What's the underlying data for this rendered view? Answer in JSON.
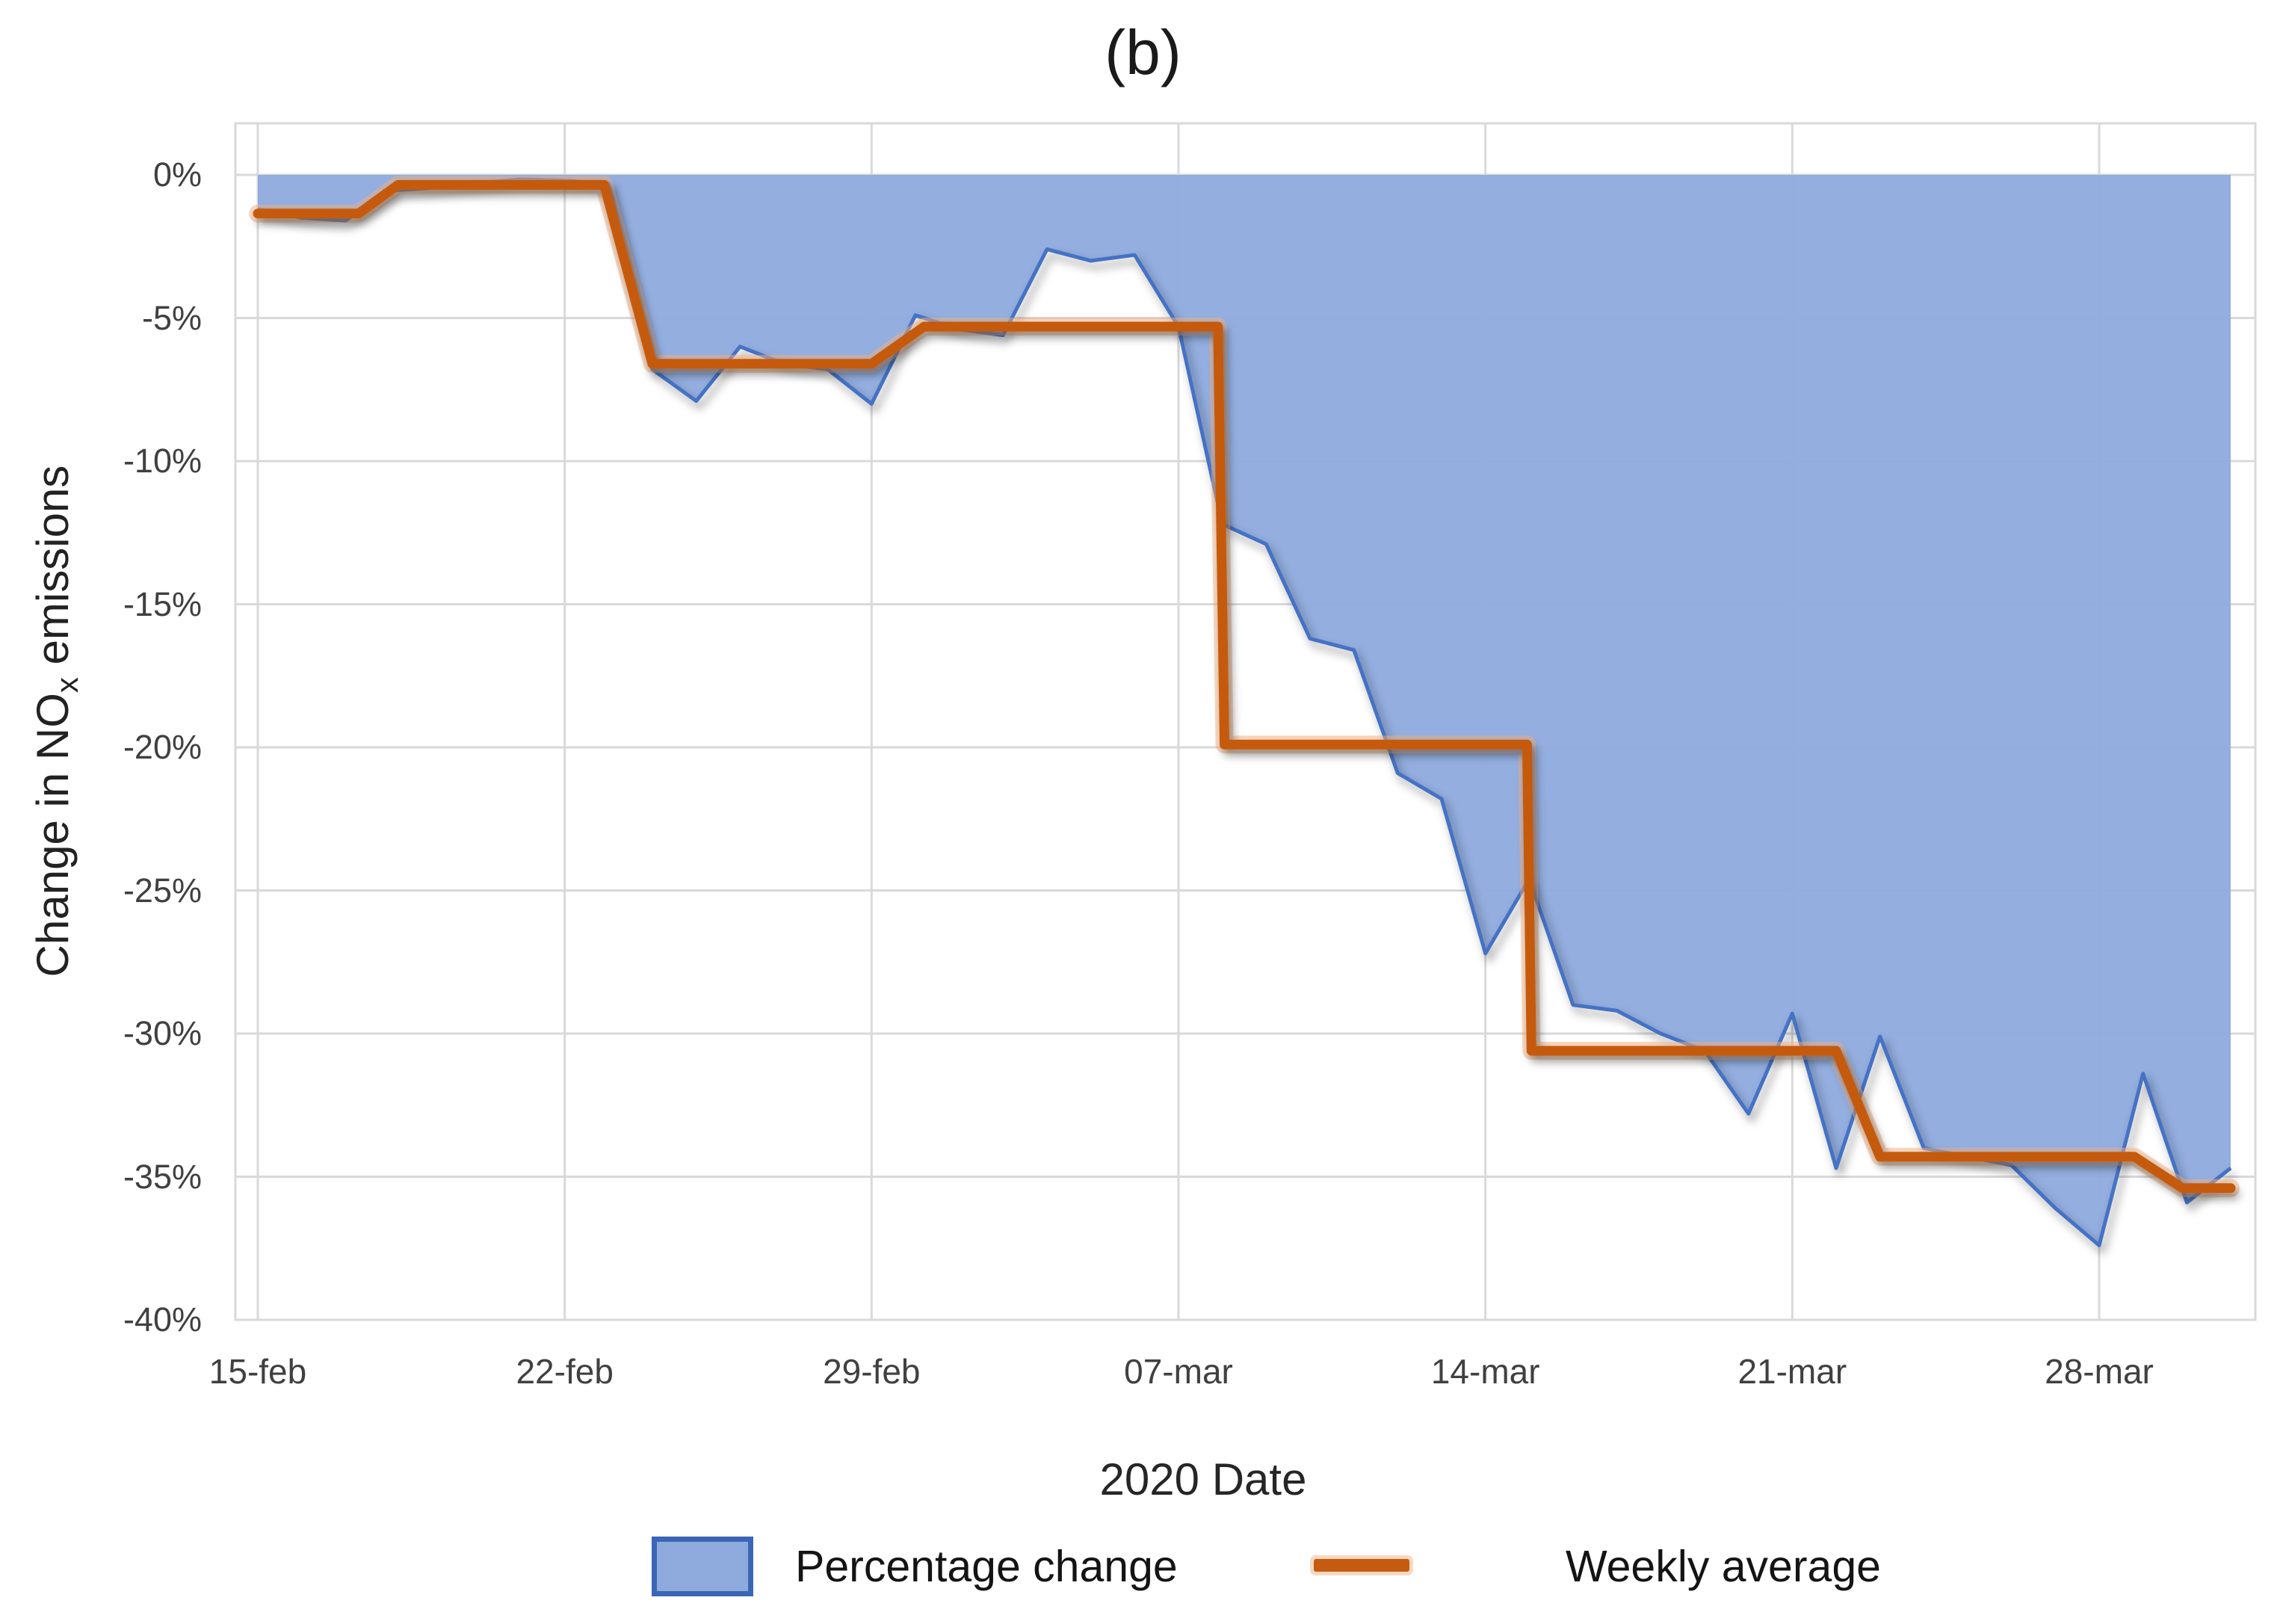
{
  "title": "(b)",
  "y_axis": {
    "title_prefix": "Change in NO",
    "title_sub": "x",
    "title_suffix": " emissions",
    "tick_labels": [
      "0%",
      "-5%",
      "-10%",
      "-15%",
      "-20%",
      "-25%",
      "-30%",
      "-35%",
      "-40%"
    ]
  },
  "x_axis": {
    "title": "2020 Date",
    "tick_labels": [
      "15-feb",
      "22-feb",
      "29-feb",
      "07-mar",
      "14-mar",
      "21-mar",
      "28-mar"
    ]
  },
  "legend": {
    "items": [
      {
        "label": "Percentage change",
        "swatch": "area"
      },
      {
        "label": "Weekly average",
        "swatch": "line"
      }
    ]
  },
  "colors": {
    "area_fill": "#8FABDE",
    "area_line": "#4472C4",
    "weekly_line": "#C55A11",
    "weekly_halo": "#F2B183",
    "gridline": "#D9D9D9",
    "tick_text": "#404040"
  },
  "chart_data": {
    "type": "area",
    "title": "(b)",
    "xlabel": "2020 Date",
    "ylabel": "Change in NOx emissions",
    "ylim": [
      -40,
      0
    ],
    "grid": true,
    "legend_position": "bottom",
    "x_dates": [
      "15-feb",
      "16-feb",
      "17-feb",
      "18-feb",
      "19-feb",
      "20-feb",
      "21-feb",
      "22-feb",
      "23-feb",
      "24-feb",
      "25-feb",
      "26-feb",
      "27-feb",
      "28-feb",
      "29-feb",
      "01-mar",
      "02-mar",
      "03-mar",
      "04-mar",
      "05-mar",
      "06-mar",
      "07-mar",
      "08-mar",
      "09-mar",
      "10-mar",
      "11-mar",
      "12-mar",
      "13-mar",
      "14-mar",
      "15-mar",
      "16-mar",
      "17-mar",
      "18-mar",
      "19-mar",
      "20-mar",
      "21-mar",
      "22-mar",
      "23-mar",
      "24-mar",
      "25-mar",
      "26-mar",
      "27-mar",
      "28-mar",
      "29-mar",
      "30-mar",
      "31-mar"
    ],
    "x_tick_days": [
      0,
      7,
      14,
      21,
      28,
      35,
      42
    ],
    "y_tick_values": [
      0,
      -5,
      -10,
      -15,
      -20,
      -25,
      -30,
      -35,
      -40
    ],
    "series": [
      {
        "name": "Percentage change",
        "type": "area",
        "values": [
          -1.2,
          -1.5,
          -1.6,
          -0.55,
          -0.45,
          -0.3,
          -0.15,
          -0.2,
          -0.3,
          -6.8,
          -7.9,
          -6.0,
          -6.6,
          -6.8,
          -8.0,
          -4.9,
          -5.4,
          -5.6,
          -2.6,
          -3.0,
          -2.8,
          -5.3,
          -12.2,
          -12.9,
          -16.2,
          -16.6,
          -20.9,
          -21.8,
          -27.2,
          -24.6,
          -29.0,
          -29.2,
          -30.0,
          -30.6,
          -32.8,
          -29.3,
          -34.7,
          -30.1,
          -34.0,
          -34.3,
          -34.6,
          -36.1,
          -37.4,
          -31.4,
          -35.9,
          -34.7
        ]
      },
      {
        "name": "Weekly average",
        "type": "step-line",
        "points_day_value": [
          [
            0,
            -1.35
          ],
          [
            2.3,
            -1.35
          ],
          [
            3.2,
            -0.35
          ],
          [
            7.9,
            -0.35
          ],
          [
            9,
            -6.6
          ],
          [
            14,
            -6.6
          ],
          [
            15.2,
            -5.3
          ],
          [
            21.9,
            -5.3
          ],
          [
            22.05,
            -19.9
          ],
          [
            28.95,
            -19.9
          ],
          [
            29.05,
            -30.6
          ],
          [
            36,
            -30.6
          ],
          [
            37,
            -34.3
          ],
          [
            42.8,
            -34.3
          ],
          [
            43.9,
            -35.4
          ],
          [
            45,
            -35.4
          ]
        ]
      }
    ]
  }
}
